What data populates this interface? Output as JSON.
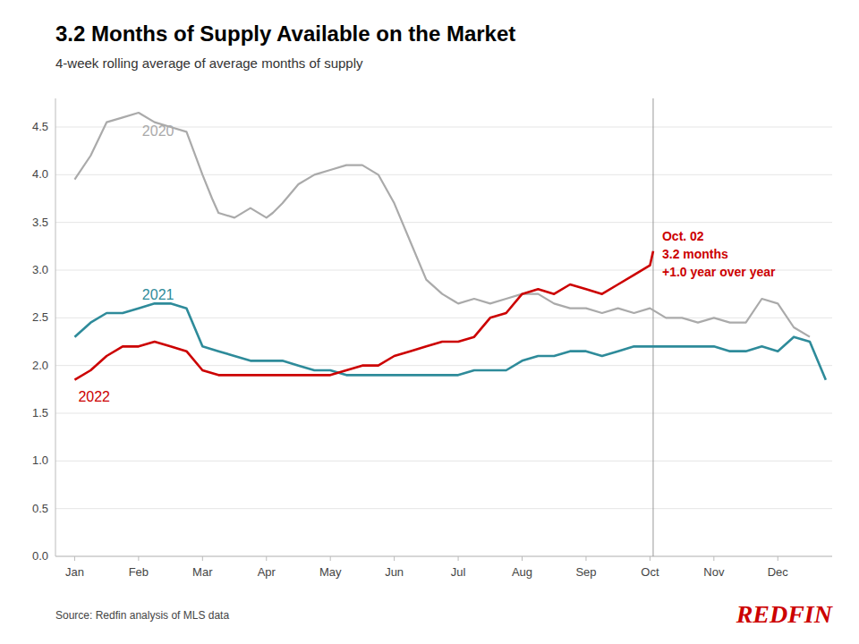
{
  "chart_data": {
    "type": "line",
    "title": "3.2 Months of Supply Available on the Market",
    "subtitle": "4-week rolling average of average months of supply",
    "source": "Source: Redfin analysis of MLS data",
    "logo": {
      "text": "REDFIN",
      "color": "#cc0000"
    },
    "xlim": [
      -0.3,
      11.85
    ],
    "xticks": [
      {
        "value": 0,
        "label": "Jan"
      },
      {
        "value": 1,
        "label": "Feb"
      },
      {
        "value": 2,
        "label": "Mar"
      },
      {
        "value": 3,
        "label": "Apr"
      },
      {
        "value": 4,
        "label": "May"
      },
      {
        "value": 5,
        "label": "Jun"
      },
      {
        "value": 6,
        "label": "Jul"
      },
      {
        "value": 7,
        "label": "Aug"
      },
      {
        "value": 8,
        "label": "Sep"
      },
      {
        "value": 9,
        "label": "Oct"
      },
      {
        "value": 10,
        "label": "Nov"
      },
      {
        "value": 11,
        "label": "Dec"
      }
    ],
    "ylim": [
      0.0,
      4.8
    ],
    "yticks": [
      {
        "value": 0.0,
        "label": "0.0"
      },
      0.5,
      {
        "value": 1.0,
        "label": "1.0"
      },
      1.5,
      {
        "value": 2.0,
        "label": "2.0"
      },
      2.5,
      {
        "value": 3.0,
        "label": "3.0"
      },
      3.5,
      {
        "value": 4.0,
        "label": "4.0"
      },
      4.5
    ],
    "grid": true,
    "series": [
      {
        "name": "2020",
        "color": "#aaaaaa",
        "x": [
          0.0,
          0.25,
          0.5,
          0.75,
          1.0,
          1.25,
          1.5,
          1.75,
          2.0,
          2.15,
          2.25,
          2.5,
          2.75,
          3.0,
          3.1,
          3.25,
          3.5,
          3.75,
          4.0,
          4.25,
          4.5,
          4.75,
          5.0,
          5.25,
          5.5,
          5.75,
          6.0,
          6.25,
          6.5,
          6.75,
          7.0,
          7.25,
          7.5,
          7.75,
          8.0,
          8.25,
          8.5,
          8.75,
          9.0,
          9.25,
          9.5,
          9.75,
          10.0,
          10.25,
          10.5,
          10.75,
          11.0,
          11.25,
          11.5
        ],
        "values": [
          3.95,
          4.2,
          4.55,
          4.6,
          4.65,
          4.55,
          4.5,
          4.45,
          4.0,
          3.75,
          3.6,
          3.55,
          3.65,
          3.55,
          3.6,
          3.7,
          3.9,
          4.0,
          4.05,
          4.1,
          4.1,
          4.0,
          3.7,
          3.3,
          2.9,
          2.75,
          2.65,
          2.7,
          2.65,
          2.7,
          2.75,
          2.75,
          2.65,
          2.6,
          2.6,
          2.55,
          2.6,
          2.55,
          2.6,
          2.5,
          2.5,
          2.45,
          2.5,
          2.45,
          2.45,
          2.7,
          2.65,
          2.4,
          2.3
        ]
      },
      {
        "name": "2021",
        "color": "#2e8b9a",
        "x": [
          0.0,
          0.25,
          0.5,
          0.75,
          1.0,
          1.25,
          1.5,
          1.75,
          2.0,
          2.25,
          2.5,
          2.75,
          3.0,
          3.25,
          3.5,
          3.75,
          4.0,
          4.25,
          4.5,
          4.75,
          5.0,
          5.25,
          5.5,
          5.75,
          6.0,
          6.25,
          6.5,
          6.75,
          7.0,
          7.25,
          7.5,
          7.75,
          8.0,
          8.25,
          8.5,
          8.75,
          9.0,
          9.25,
          9.5,
          9.75,
          10.0,
          10.25,
          10.5,
          10.75,
          11.0,
          11.25,
          11.5,
          11.75
        ],
        "values": [
          2.3,
          2.45,
          2.55,
          2.55,
          2.6,
          2.65,
          2.65,
          2.6,
          2.2,
          2.15,
          2.1,
          2.05,
          2.05,
          2.05,
          2.0,
          1.95,
          1.95,
          1.9,
          1.9,
          1.9,
          1.9,
          1.9,
          1.9,
          1.9,
          1.9,
          1.95,
          1.95,
          1.95,
          2.05,
          2.1,
          2.1,
          2.15,
          2.15,
          2.1,
          2.15,
          2.2,
          2.2,
          2.2,
          2.2,
          2.2,
          2.2,
          2.15,
          2.15,
          2.2,
          2.15,
          2.3,
          2.25,
          1.85
        ]
      },
      {
        "name": "2022",
        "color": "#cc0000",
        "x": [
          0.0,
          0.25,
          0.5,
          0.75,
          1.0,
          1.25,
          1.5,
          1.75,
          2.0,
          2.25,
          2.5,
          2.75,
          3.0,
          3.25,
          3.5,
          3.75,
          4.0,
          4.25,
          4.5,
          4.75,
          5.0,
          5.25,
          5.5,
          5.75,
          6.0,
          6.25,
          6.5,
          6.75,
          7.0,
          7.25,
          7.5,
          7.75,
          8.0,
          8.25,
          8.5,
          8.75,
          9.0,
          9.05
        ],
        "values": [
          1.85,
          1.95,
          2.1,
          2.2,
          2.2,
          2.25,
          2.2,
          2.15,
          1.95,
          1.9,
          1.9,
          1.9,
          1.9,
          1.9,
          1.9,
          1.9,
          1.9,
          1.95,
          2.0,
          2.0,
          2.1,
          2.15,
          2.2,
          2.25,
          2.25,
          2.3,
          2.5,
          2.55,
          2.75,
          2.8,
          2.75,
          2.85,
          2.8,
          2.75,
          2.85,
          2.95,
          3.05,
          3.2
        ]
      }
    ],
    "annotations": [
      {
        "x": 9.05,
        "text": "Oct. 02\n3.2 months\n+1.0 year over year",
        "color": "#cc0000"
      }
    ]
  }
}
